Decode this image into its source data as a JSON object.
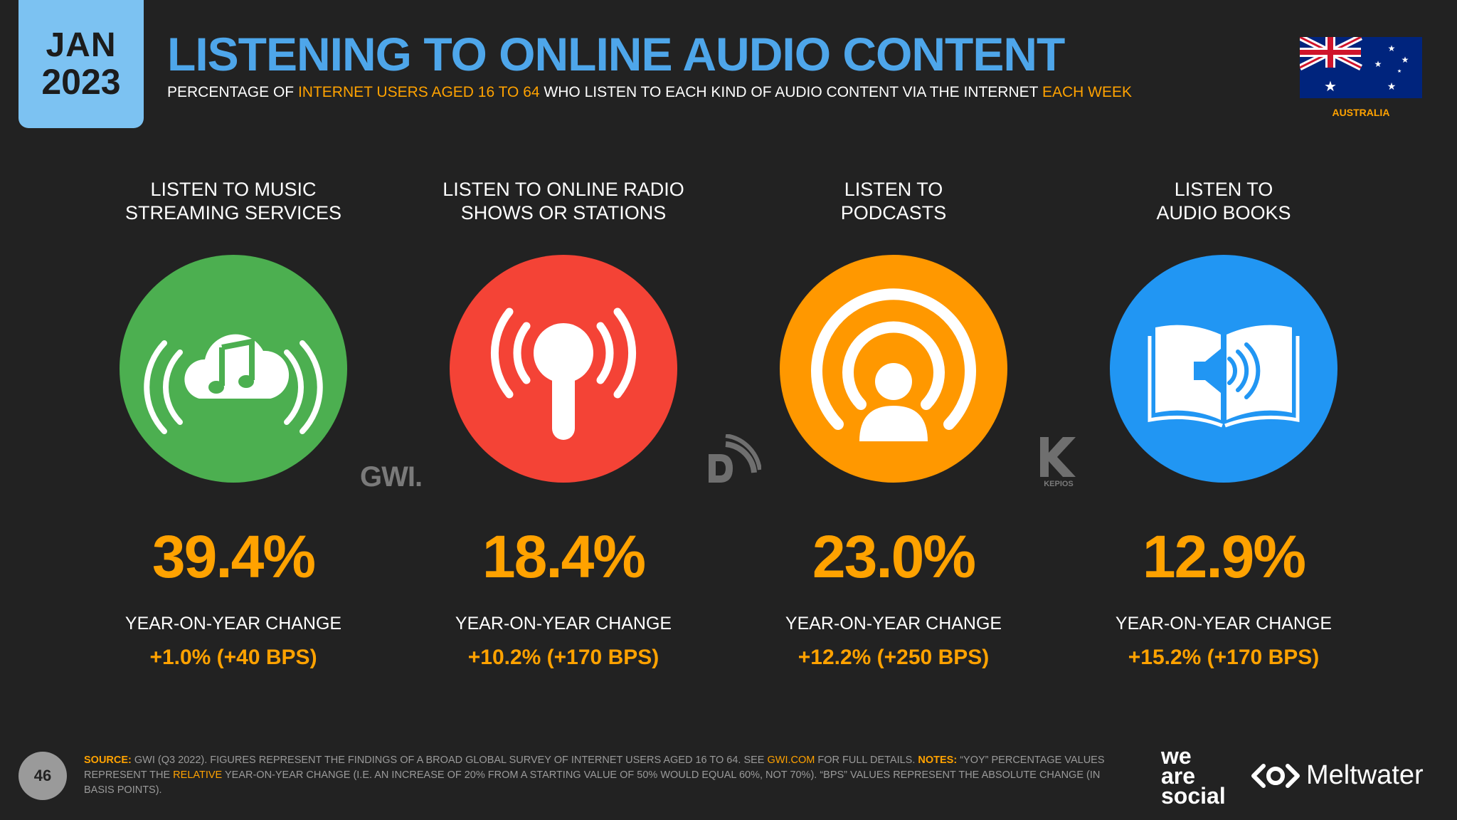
{
  "header": {
    "month": "JAN",
    "year": "2023",
    "title": "LISTENING TO ONLINE AUDIO CONTENT",
    "subtitle_1": "PERCENTAGE OF ",
    "subtitle_hl1": "INTERNET USERS AGED 16 TO 64",
    "subtitle_2": " WHO LISTEN TO EACH KIND OF AUDIO CONTENT VIA THE INTERNET ",
    "subtitle_hl2": "EACH WEEK",
    "country": "AUSTRALIA"
  },
  "metrics": [
    {
      "label_1": "LISTEN TO MUSIC",
      "label_2": "STREAMING SERVICES",
      "value": "39.4%",
      "yoy_label": "YEAR-ON-YEAR CHANGE",
      "yoy": "+1.0% (+40 BPS)",
      "color": "#4caf50",
      "icon": "cloud-music-icon"
    },
    {
      "label_1": "LISTEN TO ONLINE RADIO",
      "label_2": "SHOWS OR STATIONS",
      "value": "18.4%",
      "yoy_label": "YEAR-ON-YEAR CHANGE",
      "yoy": "+10.2% (+170 BPS)",
      "color": "#f44336",
      "icon": "radio-antenna-icon"
    },
    {
      "label_1": "LISTEN TO",
      "label_2": "PODCASTS",
      "value": "23.0%",
      "yoy_label": "YEAR-ON-YEAR CHANGE",
      "yoy": "+12.2% (+250 BPS)",
      "color": "#ff9800",
      "icon": "podcast-icon"
    },
    {
      "label_1": "LISTEN TO",
      "label_2": "AUDIO BOOKS",
      "value": "12.9%",
      "yoy_label": "YEAR-ON-YEAR CHANGE",
      "yoy": "+15.2% (+170 BPS)",
      "color": "#2196f3",
      "icon": "audiobook-icon"
    }
  ],
  "logos": {
    "gwi": "GWI.",
    "kepios": "KEPIOS",
    "we_are_social_1": "we",
    "we_are_social_2": "are",
    "we_are_social_3": "social",
    "meltwater": "Meltwater"
  },
  "footer": {
    "page": "46",
    "source_key": "SOURCE:",
    "source_1": " GWI (Q3 2022). FIGURES REPRESENT THE FINDINGS OF A BROAD GLOBAL SURVEY OF INTERNET USERS AGED 16 TO 64. SEE ",
    "source_link": "GWI.COM",
    "source_2": " FOR FULL DETAILS. ",
    "notes_key": "NOTES:",
    "notes_1": " “YOY” PERCENTAGE VALUES REPRESENT THE ",
    "notes_hl": "RELATIVE",
    "notes_2": " YEAR-ON-YEAR CHANGE (I.E. AN INCREASE OF 20% FROM A STARTING VALUE OF 50% WOULD EQUAL 60%, NOT 70%). “BPS” VALUES REPRESENT THE ABSOLUTE CHANGE (IN BASIS POINTS)."
  }
}
